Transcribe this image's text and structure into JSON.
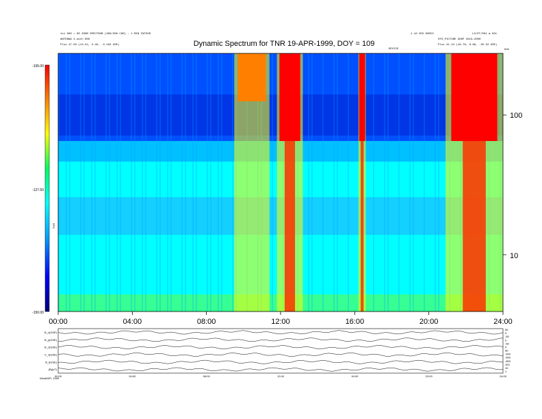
{
  "chart_data": {
    "type": "heatmap",
    "title": "Dynamic Spectrum for TNR 19-APR-1999, DOY = 109",
    "x_ticks": [
      "00:00",
      "04:00",
      "08:00",
      "12:00",
      "16:00",
      "20:00",
      "24:00"
    ],
    "x_range_hours": [
      0,
      24
    ],
    "y_scale": "log",
    "y_ticks_right": [
      "100",
      "10"
    ],
    "y_unit_label": "kHz",
    "colorbar": {
      "ticks": [
        "-105.00",
        "-127.50",
        "-150.00"
      ],
      "range": [
        -150,
        -105
      ],
      "colors": [
        "#00007a",
        "#0000ff",
        "#00a0ff",
        "#00ffff",
        "#00ff60",
        "#ffff00",
        "#ff8000",
        "#ff0000"
      ],
      "label": "TNR"
    },
    "bright_bursts_hours": [
      {
        "start": 9.5,
        "end": 11.4,
        "level": "high"
      },
      {
        "start": 11.8,
        "end": 13.2,
        "level": "saturated"
      },
      {
        "start": 16.2,
        "end": 16.6,
        "level": "saturated"
      },
      {
        "start": 20.9,
        "end": 24.0,
        "level": "saturated"
      }
    ],
    "header_left": [
      "1x1 000 = 00 ZOOM SPECTRUM (300/300 COR) - 1 MIN INTEGR",
      "ANTENNA 3 with 000",
      "Plus 47.63 (13.51, 3.46, -3.193 GSE)"
    ],
    "header_right": [
      "1.10 VEO SURCO",
      "STS_PICTURE 3D0P 3013-2000",
      "Plus 41.24 (16.78, 8.86, -35.52 GSE)",
      "L3/ET/D01 m 501"
    ],
    "header_center": "DEVICE"
  },
  "magnetometer_panel": {
    "labels": [
      "B_x(GSE)",
      "B_y(GSE)",
      "B_z(GSE)",
      "V_x(GSE)",
      "N_i(GSE)",
      "|B|(nT)"
    ],
    "right_scale": [
      "50",
      "0",
      "-50",
      "0",
      "-50",
      "0",
      "50",
      "-400",
      "-600",
      "-800",
      "100",
      "10",
      "1"
    ],
    "x_ticks": [
      "00:00",
      "04:00",
      "08:00",
      "12:00",
      "16:00",
      "20:00",
      "24:00"
    ],
    "footer": "Wind/MFI, 1999"
  }
}
